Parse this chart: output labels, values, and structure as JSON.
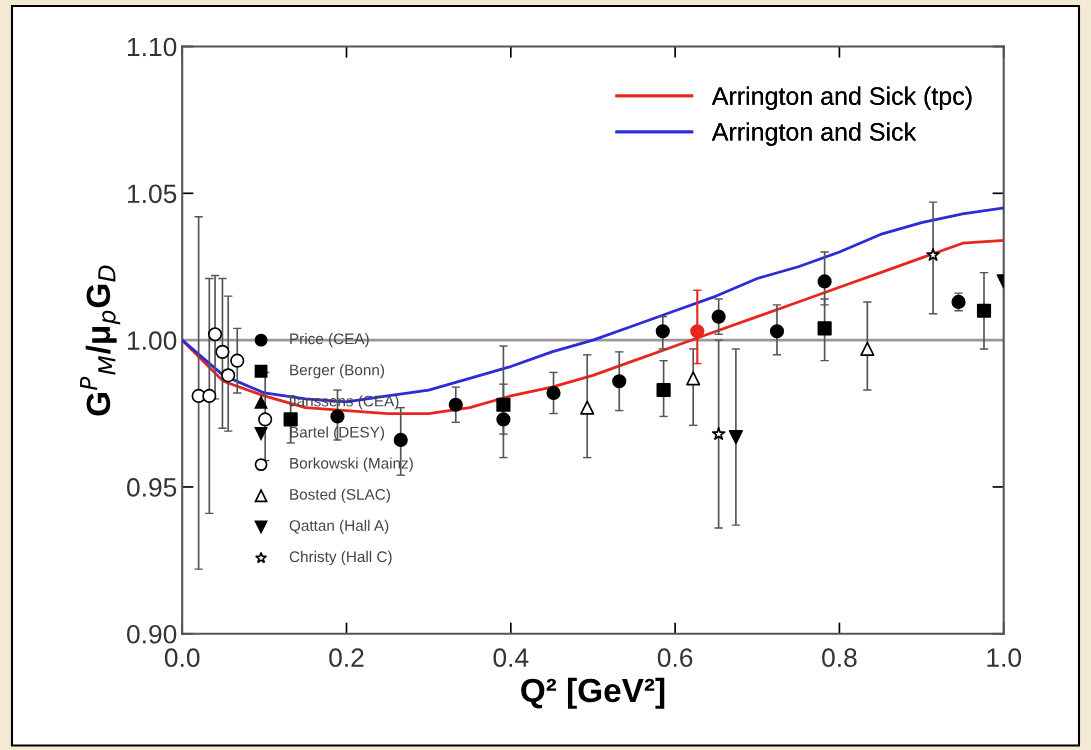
{
  "chart_data": {
    "type": "scatter",
    "xlabel": "Q² [GeV²]",
    "ylabel": "G$^{P}$$_{M}$/μ$_{p}$G$_{D}$",
    "xlim": [
      0,
      1.0
    ],
    "ylim": [
      0.9,
      1.1
    ],
    "xticks": [
      {
        "value": 0,
        "label": "0.0"
      },
      {
        "value": 0.2,
        "label": "0.2"
      },
      {
        "value": 0.4,
        "label": "0.4"
      },
      {
        "value": 0.6,
        "label": "0.6"
      },
      {
        "value": 0.8,
        "label": "0.8"
      },
      {
        "value": 1.0,
        "label": "1.0"
      }
    ],
    "yticks": [
      {
        "value": 0.9,
        "label": "0.90"
      },
      {
        "value": 0.95,
        "label": "0.95"
      },
      {
        "value": 1.0,
        "label": "1.00"
      },
      {
        "value": 1.05,
        "label": "1.05"
      },
      {
        "value": 1.1,
        "label": "1.10"
      }
    ],
    "legend": "top right",
    "grid": false,
    "ref_lines": [
      {
        "axis": "y",
        "value": 1.0,
        "label": null,
        "color": "#999999"
      }
    ],
    "series": [
      {
        "name": "Arrington and Sick (tpc)",
        "type": "line",
        "color": "#e8261f",
        "x": [
          0,
          0.05,
          0.1,
          0.15,
          0.2,
          0.25,
          0.3,
          0.35,
          0.4,
          0.45,
          0.5,
          0.55,
          0.6,
          0.65,
          0.7,
          0.75,
          0.8,
          0.85,
          0.9,
          0.95,
          1.0
        ],
        "values": [
          1.0,
          0.986,
          0.981,
          0.977,
          0.976,
          0.975,
          0.975,
          0.977,
          0.981,
          0.984,
          0.988,
          0.993,
          0.998,
          1.003,
          1.008,
          1.013,
          1.018,
          1.023,
          1.028,
          1.033,
          1.034
        ]
      },
      {
        "name": "Arrington and Sick",
        "type": "line",
        "color": "#2b2bd8",
        "x": [
          0,
          0.05,
          0.1,
          0.15,
          0.2,
          0.25,
          0.3,
          0.35,
          0.4,
          0.45,
          0.5,
          0.55,
          0.6,
          0.65,
          0.7,
          0.75,
          0.8,
          0.85,
          0.9,
          0.95,
          1.0
        ],
        "values": [
          1.0,
          0.988,
          0.982,
          0.98,
          0.979,
          0.981,
          0.983,
          0.987,
          0.991,
          0.996,
          1.0,
          1.005,
          1.01,
          1.015,
          1.021,
          1.025,
          1.03,
          1.036,
          1.04,
          1.043,
          1.045
        ]
      },
      {
        "name": "Price (CEA)",
        "marker": "circle",
        "color": "#000000",
        "x": [
          0.189,
          0.266,
          0.333,
          0.391,
          0.452,
          0.532,
          0.585,
          0.653,
          0.724,
          0.782,
          0.945
        ],
        "values": [
          0.974,
          0.966,
          0.978,
          0.973,
          0.982,
          0.986,
          1.003,
          1.008,
          1.003,
          1.02,
          1.013
        ],
        "errors": [
          [
            0.966,
            0.983
          ],
          [
            0.954,
            0.977
          ],
          [
            0.972,
            0.984
          ],
          [
            0.96,
            0.985
          ],
          [
            0.975,
            0.989
          ],
          [
            0.976,
            0.996
          ],
          [
            0.997,
            1.008
          ],
          [
            1.002,
            1.014
          ],
          [
            0.995,
            1.012
          ],
          [
            1.012,
            1.03
          ],
          [
            1.01,
            1.016
          ]
        ]
      },
      {
        "name": "Berger (Bonn)",
        "marker": "square",
        "color": "#000000",
        "x": [
          0.132,
          0.391,
          0.586,
          0.782,
          0.976
        ],
        "values": [
          0.973,
          0.978,
          0.983,
          1.004,
          1.01
        ],
        "errors": [
          [
            0.965,
            0.981
          ],
          [
            0.968,
            0.998
          ],
          [
            0.974,
            0.993
          ],
          [
            0.993,
            1.014
          ],
          [
            0.997,
            1.023
          ]
        ]
      },
      {
        "name": "Janssens (CEA)",
        "marker": "triangle",
        "color": "#000000"
      },
      {
        "name": "Bartel (DESY)",
        "marker": "triangle_down",
        "color": "#000000"
      },
      {
        "name": "Borkowski (Mainz)",
        "marker": "circle",
        "color": "#ffffff",
        "x": [
          0.02,
          0.033,
          0.04,
          0.049,
          0.056,
          0.067,
          0.101
        ],
        "values": [
          0.981,
          0.981,
          1.002,
          0.996,
          0.988,
          0.993,
          0.973
        ],
        "errors": [
          [
            0.922,
            1.042
          ],
          [
            0.941,
            1.021
          ],
          [
            0.98,
            1.022
          ],
          [
            0.97,
            1.021
          ],
          [
            0.969,
            1.015
          ],
          [
            0.982,
            1.004
          ],
          [
            0.959,
            0.989
          ]
        ]
      },
      {
        "name": "Bosted (SLAC)",
        "marker": "triangle",
        "color": "#ffffff",
        "x": [
          0.493,
          0.622,
          0.834
        ],
        "values": [
          0.977,
          0.987,
          0.997
        ],
        "errors": [
          [
            0.96,
            0.995
          ],
          [
            0.971,
            0.997
          ],
          [
            0.983,
            1.013
          ]
        ]
      },
      {
        "name": "Qattan (Hall A)",
        "marker": "triangle_down",
        "color": "#000000",
        "x": [
          0.674,
          1.0
        ],
        "values": [
          0.967,
          1.02
        ],
        "errors": [
          [
            0.937,
            0.997
          ],
          null
        ]
      },
      {
        "name": "Christy (Hall C)",
        "marker": "star",
        "color": "#ffffff",
        "x": [
          0.653,
          0.914
        ],
        "values": [
          0.968,
          1.029
        ],
        "errors": [
          [
            0.936,
            1.0
          ],
          [
            1.009,
            1.047
          ]
        ]
      },
      {
        "marker": "circle",
        "color": "#e8261f",
        "x": [
          0.627
        ],
        "values": [
          1.003
        ],
        "errors": [
          [
            0.992,
            1.017
          ]
        ]
      }
    ]
  }
}
